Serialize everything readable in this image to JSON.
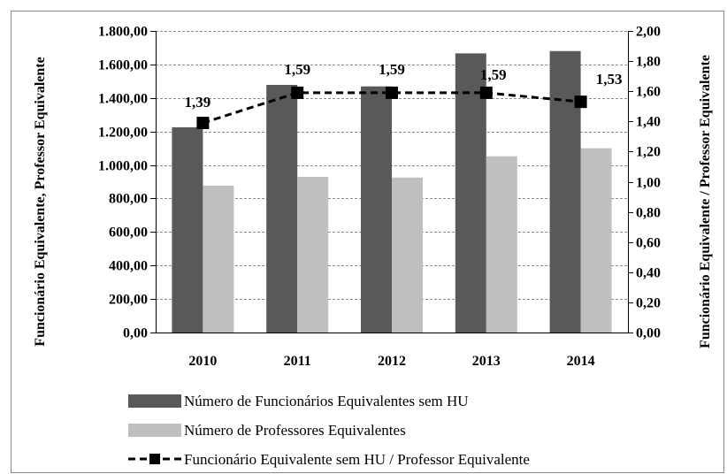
{
  "chart_data": {
    "type": "bar",
    "categories": [
      "2010",
      "2011",
      "2012",
      "2013",
      "2014"
    ],
    "ylabel": "Funcionário Equivalente, Professor Equivalente",
    "y2label": "Funcionário Equivalente / Professor Equivalente",
    "ylim": [
      0,
      1800
    ],
    "y2lim": [
      0,
      2
    ],
    "yticks": [
      "0,00",
      "200,00",
      "400,00",
      "600,00",
      "800,00",
      "1.000,00",
      "1.200,00",
      "1.400,00",
      "1.600,00",
      "1.800,00"
    ],
    "y2ticks": [
      "0,00",
      "0,20",
      "0,40",
      "0,60",
      "0,80",
      "1,00",
      "1,20",
      "1,40",
      "1,60",
      "1,80",
      "2,00"
    ],
    "grid": true,
    "legend_position": "bottom",
    "series": [
      {
        "name": "Número de Funcionários Equivalentes sem HU",
        "type": "bar",
        "axis": "left",
        "color": "#595959",
        "values": [
          1225,
          1478,
          1469,
          1666,
          1680
        ]
      },
      {
        "name": "Número de Professores Equivalentes",
        "type": "bar",
        "axis": "left",
        "color": "#bfbfbf",
        "values": [
          877,
          929,
          925,
          1052,
          1100
        ]
      },
      {
        "name": "Funcionário Equivalente sem HU / Professor Equivalente",
        "type": "line",
        "axis": "right",
        "color": "#000000",
        "style": "dashed",
        "marker": "square",
        "values": [
          1.39,
          1.59,
          1.59,
          1.59,
          1.53
        ],
        "labels": [
          "1,39",
          "1,59",
          "1,59",
          "1,59",
          "1,53"
        ]
      }
    ]
  }
}
